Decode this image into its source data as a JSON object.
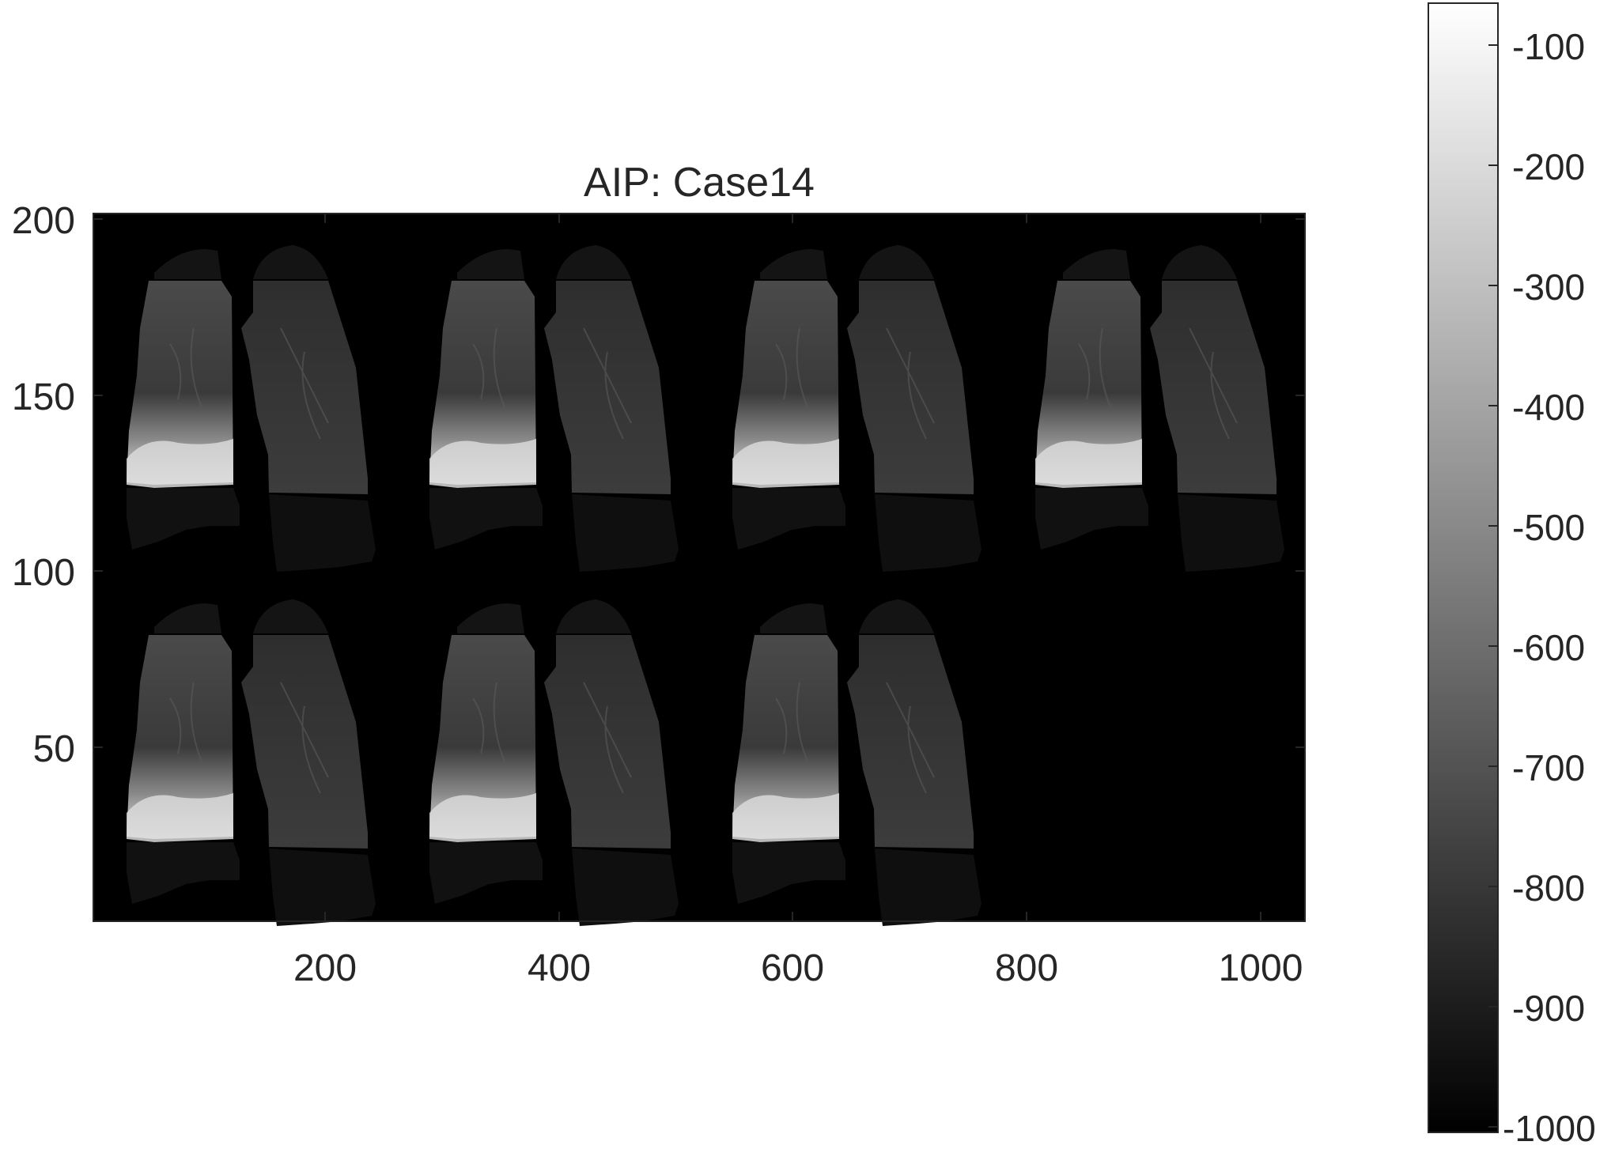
{
  "figure": {
    "title": "AIP: Case14",
    "x_tick_labels": [
      "200",
      "400",
      "600",
      "800",
      "1000"
    ],
    "y_tick_labels": [
      "200",
      "150",
      "100",
      "50"
    ],
    "colorbar_tick_labels": [
      "-100",
      "-200",
      "-300",
      "-400",
      "-500",
      "-600",
      "-700",
      "-800",
      "-900",
      "-1000"
    ],
    "colormap": "gray",
    "image_background_color": "#000000",
    "panel_layout": {
      "rows": 2,
      "columns": 4,
      "panels_shown": 7
    }
  },
  "chart_data": {
    "type": "heatmap",
    "title": "AIP: Case14",
    "xlabel": "",
    "ylabel": "",
    "xlim": [
      0,
      1040
    ],
    "ylim": [
      0,
      200
    ],
    "x_ticks": [
      200,
      400,
      600,
      800,
      1000
    ],
    "y_ticks": [
      50,
      100,
      150,
      200
    ],
    "colorbar": {
      "clim": [
        -1000,
        -50
      ],
      "ticks": [
        -100,
        -200,
        -300,
        -400,
        -500,
        -600,
        -700,
        -800,
        -900,
        -1000
      ]
    },
    "panels": 7
  }
}
